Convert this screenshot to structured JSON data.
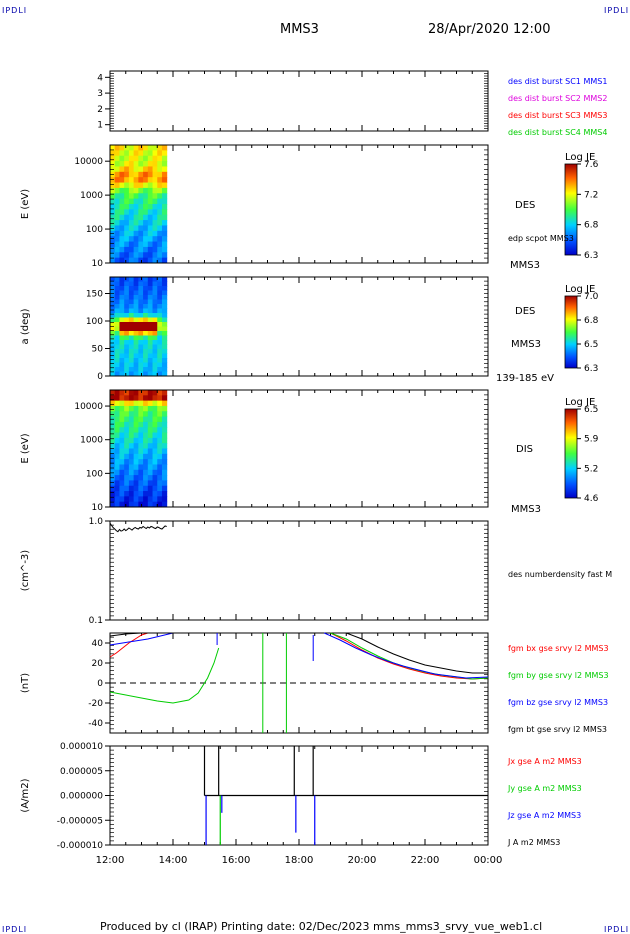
{
  "header": {
    "corner_tl": "IPDLI",
    "corner_tr": "IPDLI",
    "corner_bl": "IPDLI",
    "corner_br": "IPDLI",
    "mission": "MMS3",
    "date": "28/Apr/2020 12:00"
  },
  "footer": {
    "text": "Produced by cl (IRAP)   Printing date: 02/Dec/2023   mms_mms3_srvy_vue_web1.cl"
  },
  "colors": {
    "mms1": "#0000ff",
    "mms2": "#dd00dd",
    "mms3": "#ff0000",
    "mms4": "#00cc00",
    "black": "#000000"
  },
  "chart_data": [
    {
      "id": "panel1",
      "type": "line",
      "ylabel": "",
      "ylim": [
        0.6,
        4.4
      ],
      "yticks": [
        1,
        2,
        3,
        4
      ],
      "series": [],
      "legend": [
        {
          "text": "des dist burst SC1 MMS1",
          "color": "#0000ff"
        },
        {
          "text": "des dist burst SC2 MMS2",
          "color": "#dd00dd"
        },
        {
          "text": "des dist burst SC3 MMS3",
          "color": "#ff0000"
        },
        {
          "text": "des dist burst SC4 MMS4",
          "color": "#00cc00"
        }
      ]
    },
    {
      "id": "panel2",
      "type": "heatmap",
      "ylabel": "E (eV)",
      "yscale": "log",
      "ylim": [
        10,
        30000
      ],
      "yticks": [
        10,
        100,
        1000,
        10000
      ],
      "x_range_hours": [
        12.0,
        13.8
      ],
      "labels": [
        "DES",
        "edp scpot MMS3",
        "MMS3"
      ],
      "colorbar": {
        "title": "Log JE",
        "ticks": [
          "7.6",
          "7.2",
          "6.8",
          "6.3"
        ]
      },
      "hot_band_e_range": [
        1500,
        8000
      ]
    },
    {
      "id": "panel3",
      "type": "heatmap",
      "ylabel": "a (deg)",
      "ylim": [
        0,
        180
      ],
      "yticks": [
        0,
        50,
        100,
        150
      ],
      "x_range_hours": [
        12.0,
        13.8
      ],
      "labels": [
        "DES",
        "MMS3",
        "139-185 eV"
      ],
      "colorbar": {
        "title": "Log JE",
        "ticks": [
          "7.0",
          "6.8",
          "6.5",
          "6.3"
        ]
      },
      "hot_band_deg_range": [
        80,
        110
      ]
    },
    {
      "id": "panel4",
      "type": "heatmap",
      "ylabel": "E (eV)",
      "yscale": "log",
      "ylim": [
        10,
        30000
      ],
      "yticks": [
        10,
        100,
        1000,
        10000
      ],
      "x_range_hours": [
        12.0,
        13.8
      ],
      "labels": [
        "DIS",
        "MMS3"
      ],
      "colorbar": {
        "title": "Log JE",
        "ticks": [
          "6.5",
          "5.9",
          "5.2",
          "4.6"
        ]
      },
      "hot_band_e_range": [
        10000,
        25000
      ]
    },
    {
      "id": "panel5",
      "type": "line",
      "ylabel": "(cm^-3)",
      "yscale": "log",
      "ylim": [
        0.1,
        1.0
      ],
      "yticks": [
        0.1,
        1.0
      ],
      "ytick_labels": [
        "0.1",
        "1.0"
      ],
      "legend": [
        {
          "text": "des numberdensity fast M",
          "color": "#000000"
        }
      ],
      "series": [
        {
          "color": "#000000",
          "x": [
            12.0,
            12.05,
            12.1,
            12.15,
            12.2,
            12.25,
            12.3,
            12.35,
            12.4,
            12.45,
            12.5,
            12.55,
            12.6,
            12.65,
            12.7,
            12.75,
            12.8,
            12.85,
            12.9,
            12.95,
            13.0,
            13.05,
            13.1,
            13.15,
            13.2,
            13.25,
            13.3,
            13.35,
            13.4,
            13.45,
            13.5,
            13.55,
            13.6,
            13.65,
            13.7,
            13.75,
            13.8
          ],
          "y": [
            0.95,
            0.9,
            0.86,
            0.83,
            0.8,
            0.78,
            0.82,
            0.79,
            0.8,
            0.83,
            0.8,
            0.82,
            0.85,
            0.83,
            0.81,
            0.84,
            0.86,
            0.84,
            0.83,
            0.86,
            0.85,
            0.88,
            0.86,
            0.84,
            0.87,
            0.85,
            0.88,
            0.87,
            0.85,
            0.84,
            0.87,
            0.86,
            0.84,
            0.83,
            0.86,
            0.89,
            0.88
          ]
        }
      ]
    },
    {
      "id": "panel6",
      "type": "line",
      "ylabel": "(nT)",
      "ylim": [
        -50,
        50
      ],
      "yticks": [
        -40,
        -20,
        0,
        20,
        40
      ],
      "zero_line": true,
      "legend": [
        {
          "text": "fgm bx gse srvy l2 MMS3",
          "color": "#ff0000"
        },
        {
          "text": "fgm by gse srvy l2 MMS3",
          "color": "#00cc00"
        },
        {
          "text": "fgm bz gse srvy l2 MMS3",
          "color": "#0000ff"
        },
        {
          "text": "fgm bt gse srvy l2 MMS3",
          "color": "#000000"
        }
      ],
      "series": [
        {
          "color": "#ff0000",
          "segments": [
            {
              "x": [
                12.0,
                12.2,
                12.4,
                12.6,
                12.8,
                13.0,
                13.2
              ],
              "y": [
                26,
                30,
                35,
                40,
                44,
                48,
                52
              ]
            },
            {
              "x": [
                19.0,
                19.5,
                20.0,
                20.5,
                21.0,
                21.5,
                22.0,
                22.5,
                23.0,
                23.5,
                24.0
              ],
              "y": [
                52,
                42,
                33,
                25,
                19,
                14,
                10,
                7,
                5,
                4,
                5
              ]
            }
          ]
        },
        {
          "color": "#00cc00",
          "segments": [
            {
              "x": [
                12.0,
                12.5,
                13.0,
                13.5,
                14.0,
                14.5,
                14.8,
                15.1,
                15.3,
                15.45
              ],
              "y": [
                -9,
                -12,
                -15,
                -18,
                -20,
                -17,
                -10,
                5,
                20,
                35
              ]
            },
            {
              "x": [
                16.85,
                16.85
              ],
              "y": [
                -50,
                50
              ]
            },
            {
              "x": [
                17.6,
                17.6
              ],
              "y": [
                -50,
                50
              ]
            },
            {
              "x": [
                19.0,
                19.5,
                20.0,
                20.5,
                21.0,
                21.5,
                22.0,
                22.5,
                23.0,
                23.5,
                24.0
              ],
              "y": [
                55,
                44,
                35,
                27,
                20,
                15,
                11,
                8,
                6,
                4,
                5
              ]
            }
          ]
        },
        {
          "color": "#0000ff",
          "segments": [
            {
              "x": [
                12.0,
                12.4,
                12.8,
                13.2,
                13.6,
                14.0
              ],
              "y": [
                38,
                40,
                42,
                44,
                47,
                50
              ]
            },
            {
              "x": [
                15.4,
                15.4
              ],
              "y": [
                38,
                50
              ]
            },
            {
              "x": [
                18.45,
                18.45
              ],
              "y": [
                22,
                48
              ]
            },
            {
              "x": [
                18.8,
                19.3,
                19.8,
                20.3,
                20.8,
                21.3,
                21.8,
                22.3,
                22.8,
                23.3,
                24.0
              ],
              "y": [
                52,
                43,
                35,
                28,
                22,
                17,
                13,
                9,
                7,
                5,
                6
              ]
            }
          ]
        },
        {
          "color": "#000000",
          "segments": [
            {
              "x": [
                12.0,
                12.5,
                13.0,
                13.5,
                14.0
              ],
              "y": [
                47,
                49,
                50,
                51,
                52
              ]
            },
            {
              "x": [
                19.5,
                20.0,
                20.5,
                21.0,
                21.5,
                22.0,
                22.5,
                23.0,
                23.5,
                24.0
              ],
              "y": [
                52,
                44,
                36,
                29,
                23,
                18,
                15,
                12,
                10,
                10
              ]
            }
          ]
        }
      ]
    },
    {
      "id": "panel7",
      "type": "line",
      "ylabel": "(A/m2)",
      "ylim": [
        -1e-05,
        1e-05
      ],
      "yticks": [
        -1e-05,
        -5e-06,
        0,
        5e-06,
        1e-05
      ],
      "ytick_labels": [
        "-0.000010",
        "-0.000005",
        "0.000000",
        "0.000005",
        "0.000010"
      ],
      "legend": [
        {
          "text": "Jx gse A m2 MMS3",
          "color": "#ff0000"
        },
        {
          "text": "Jy gse A m2 MMS3",
          "color": "#00cc00"
        },
        {
          "text": "Jz gse A m2 MMS3",
          "color": "#0000ff"
        },
        {
          "text": "J A m2 MMS3",
          "color": "#000000"
        }
      ],
      "spikes": [
        {
          "x": 15.0,
          "y": 1.05e-05,
          "color": "#000000"
        },
        {
          "x": 15.05,
          "y": -1.1e-05,
          "color": "#0000ff"
        },
        {
          "x": 15.45,
          "y": 1.1e-05,
          "color": "#000000"
        },
        {
          "x": 15.5,
          "y": -1.1e-05,
          "color": "#00cc00"
        },
        {
          "x": 15.55,
          "y": -3.5e-06,
          "color": "#0000ff"
        },
        {
          "x": 17.85,
          "y": 1.05e-05,
          "color": "#000000"
        },
        {
          "x": 17.9,
          "y": -7.5e-06,
          "color": "#0000ff"
        },
        {
          "x": 18.45,
          "y": 1.05e-05,
          "color": "#000000"
        },
        {
          "x": 18.5,
          "y": -1.1e-05,
          "color": "#0000ff"
        }
      ]
    }
  ],
  "xaxis": {
    "range_hours": [
      12,
      24
    ],
    "tick_labels": [
      "12:00",
      "14:00",
      "16:00",
      "18:00",
      "20:00",
      "22:00",
      "00:00"
    ]
  }
}
